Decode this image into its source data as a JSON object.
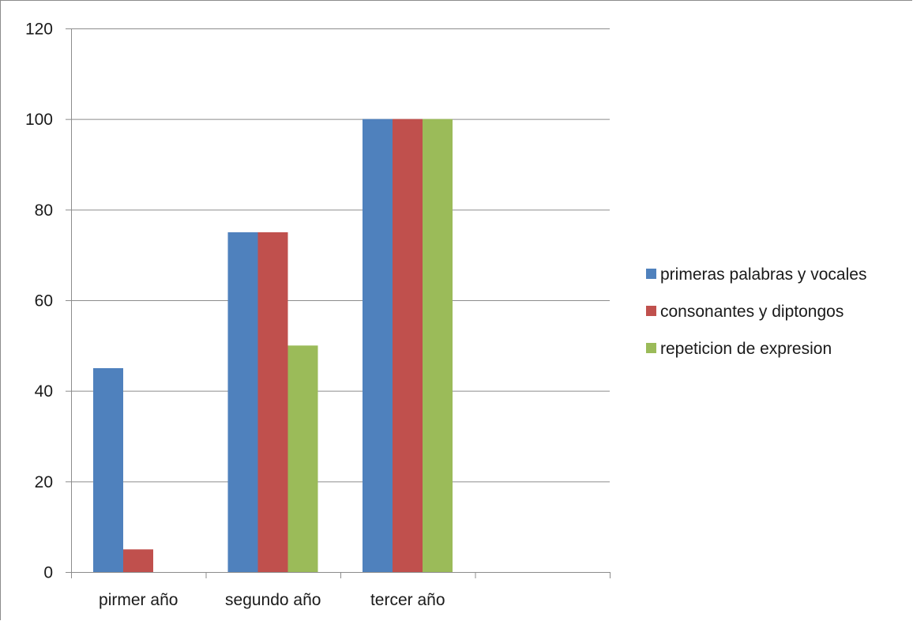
{
  "chart_data": {
    "type": "bar",
    "categories": [
      "pirmer año",
      "segundo año",
      "tercer año",
      ""
    ],
    "series": [
      {
        "name": "primeras palabras y vocales",
        "color": "#4F81BD",
        "values": [
          45,
          75,
          100,
          null
        ]
      },
      {
        "name": "consonantes y diptongos",
        "color": "#C0504D",
        "values": [
          5,
          75,
          100,
          null
        ]
      },
      {
        "name": "repeticion de expresion",
        "color": "#9BBB59",
        "values": [
          0,
          50,
          100,
          null
        ]
      }
    ],
    "ylim": [
      0,
      120
    ],
    "yticks": [
      0,
      20,
      40,
      60,
      80,
      100,
      120
    ],
    "grid": true,
    "legend_position": "right"
  }
}
